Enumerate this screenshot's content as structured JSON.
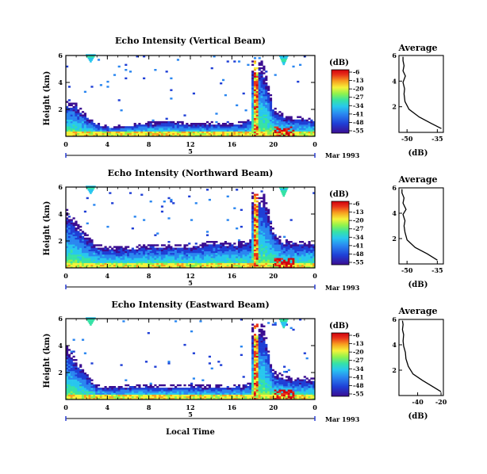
{
  "xlabel": "Local Time",
  "date_label": "Mar 1993",
  "day_label": "5",
  "height_label": "Height (km)",
  "colorbar_unit": "(dB)",
  "colorbar_ticks": [
    "-6",
    "-13",
    "-20",
    "-27",
    "-34",
    "-41",
    "-48",
    "-55"
  ],
  "avg_title": "Average",
  "avg_xlabel": "(dB)",
  "colors": {
    "scale": [
      "#3b0d91",
      "#1f3fd6",
      "#2a86f0",
      "#28c7ee",
      "#36e2a6",
      "#8ef24e",
      "#f5f23a",
      "#f7a020",
      "#e8321a",
      "#d1000d"
    ]
  },
  "chart_data": [
    {
      "type": "heatmap",
      "title": "Echo Intensity (Vertical Beam)",
      "xlabel": "",
      "ylabel": "Height (km)",
      "x_ticks": [
        "0",
        "4",
        "8",
        "12",
        "16",
        "20",
        "0"
      ],
      "y_ticks": [
        "6",
        "4",
        "2"
      ],
      "xlim": [
        0,
        24
      ],
      "ylim": [
        0,
        6
      ],
      "clim": [
        -55,
        -6
      ],
      "boundary_layer_top_km": [
        2.6,
        2.5,
        1.6,
        1.0,
        0.8,
        0.8,
        0.9,
        1.0,
        1.1,
        1.1,
        1.2,
        1.1,
        1.0,
        1.0,
        1.1,
        1.0,
        1.0,
        1.1,
        1.3,
        5.5,
        2.3,
        1.6,
        1.5,
        1.4,
        1.3
      ],
      "spike_hour": 18.4
    },
    {
      "type": "heatmap",
      "title": "Echo Intensity (Northward Beam)",
      "xlabel": "",
      "ylabel": "Height (km)",
      "x_ticks": [
        "0",
        "4",
        "8",
        "12",
        "16",
        "20",
        "0"
      ],
      "y_ticks": [
        "6",
        "4",
        "2"
      ],
      "xlim": [
        0,
        24
      ],
      "ylim": [
        0,
        6
      ],
      "clim": [
        -55,
        -6
      ],
      "boundary_layer_top_km": [
        4.5,
        3.5,
        2.5,
        1.8,
        1.6,
        1.6,
        1.6,
        1.7,
        1.8,
        1.8,
        1.8,
        1.8,
        1.7,
        1.8,
        2.1,
        2.0,
        1.9,
        2.0,
        2.1,
        5.8,
        3.0,
        2.1,
        2.0,
        2.0,
        1.9
      ],
      "spike_hour": 18.3
    },
    {
      "type": "heatmap",
      "title": "Echo Intensity (Eastward Beam)",
      "xlabel": "Local Time",
      "ylabel": "Height (km)",
      "x_ticks": [
        "0",
        "4",
        "8",
        "12",
        "16",
        "20",
        "0"
      ],
      "y_ticks": [
        "6",
        "4",
        "2"
      ],
      "xlim": [
        0,
        24
      ],
      "ylim": [
        0,
        6
      ],
      "clim": [
        -55,
        -6
      ],
      "boundary_layer_top_km": [
        4.2,
        3.0,
        2.0,
        1.1,
        1.0,
        1.0,
        1.1,
        1.1,
        1.1,
        1.1,
        1.1,
        1.1,
        1.1,
        1.1,
        1.1,
        1.1,
        1.1,
        1.1,
        1.3,
        5.8,
        2.2,
        1.8,
        1.6,
        1.7,
        1.6
      ],
      "spike_hour": 18.4
    },
    {
      "type": "line",
      "title": "Average",
      "xlabel": "(dB)",
      "x_ticks": [
        "-50",
        "-35"
      ],
      "y_ticks": [
        "6",
        "4",
        "2"
      ],
      "xlim": [
        -54,
        -32
      ],
      "ylim": [
        0,
        6
      ],
      "x": [
        -33,
        -38,
        -44,
        -49,
        -51,
        -51.5,
        -51.2,
        -52,
        -50.8,
        -52,
        -51.5,
        -52,
        -52
      ],
      "y": [
        0.3,
        0.7,
        1.2,
        1.8,
        2.4,
        3.0,
        3.4,
        3.9,
        4.4,
        4.8,
        5.2,
        5.6,
        5.9
      ]
    },
    {
      "type": "line",
      "title": "Average",
      "xlabel": "(dB)",
      "x_ticks": [
        "-50",
        "-35"
      ],
      "y_ticks": [
        "6",
        "4",
        "2"
      ],
      "xlim": [
        -54,
        -32
      ],
      "ylim": [
        0,
        6
      ],
      "x": [
        -35,
        -40,
        -46,
        -50,
        -51,
        -51.5,
        -51,
        -52,
        -50.5,
        -52,
        -51.5,
        -52.5,
        -52.5
      ],
      "y": [
        0.3,
        0.8,
        1.3,
        1.9,
        2.5,
        3.0,
        3.4,
        3.9,
        4.3,
        4.8,
        5.2,
        5.6,
        5.9
      ]
    },
    {
      "type": "line",
      "title": "Average",
      "xlabel": "(dB)",
      "x_ticks": [
        "-40",
        "-20"
      ],
      "y_ticks": [
        "6",
        "4",
        "2"
      ],
      "xlim": [
        -56,
        -18
      ],
      "ylim": [
        0,
        6
      ],
      "x": [
        -20,
        -27,
        -36,
        -44,
        -48,
        -50,
        -50.5,
        -52,
        -52.5,
        -52,
        -53,
        -52.5,
        -53
      ],
      "y": [
        0.3,
        0.7,
        1.2,
        1.7,
        2.3,
        2.9,
        3.4,
        3.9,
        4.3,
        4.8,
        5.2,
        5.6,
        5.9
      ]
    }
  ]
}
